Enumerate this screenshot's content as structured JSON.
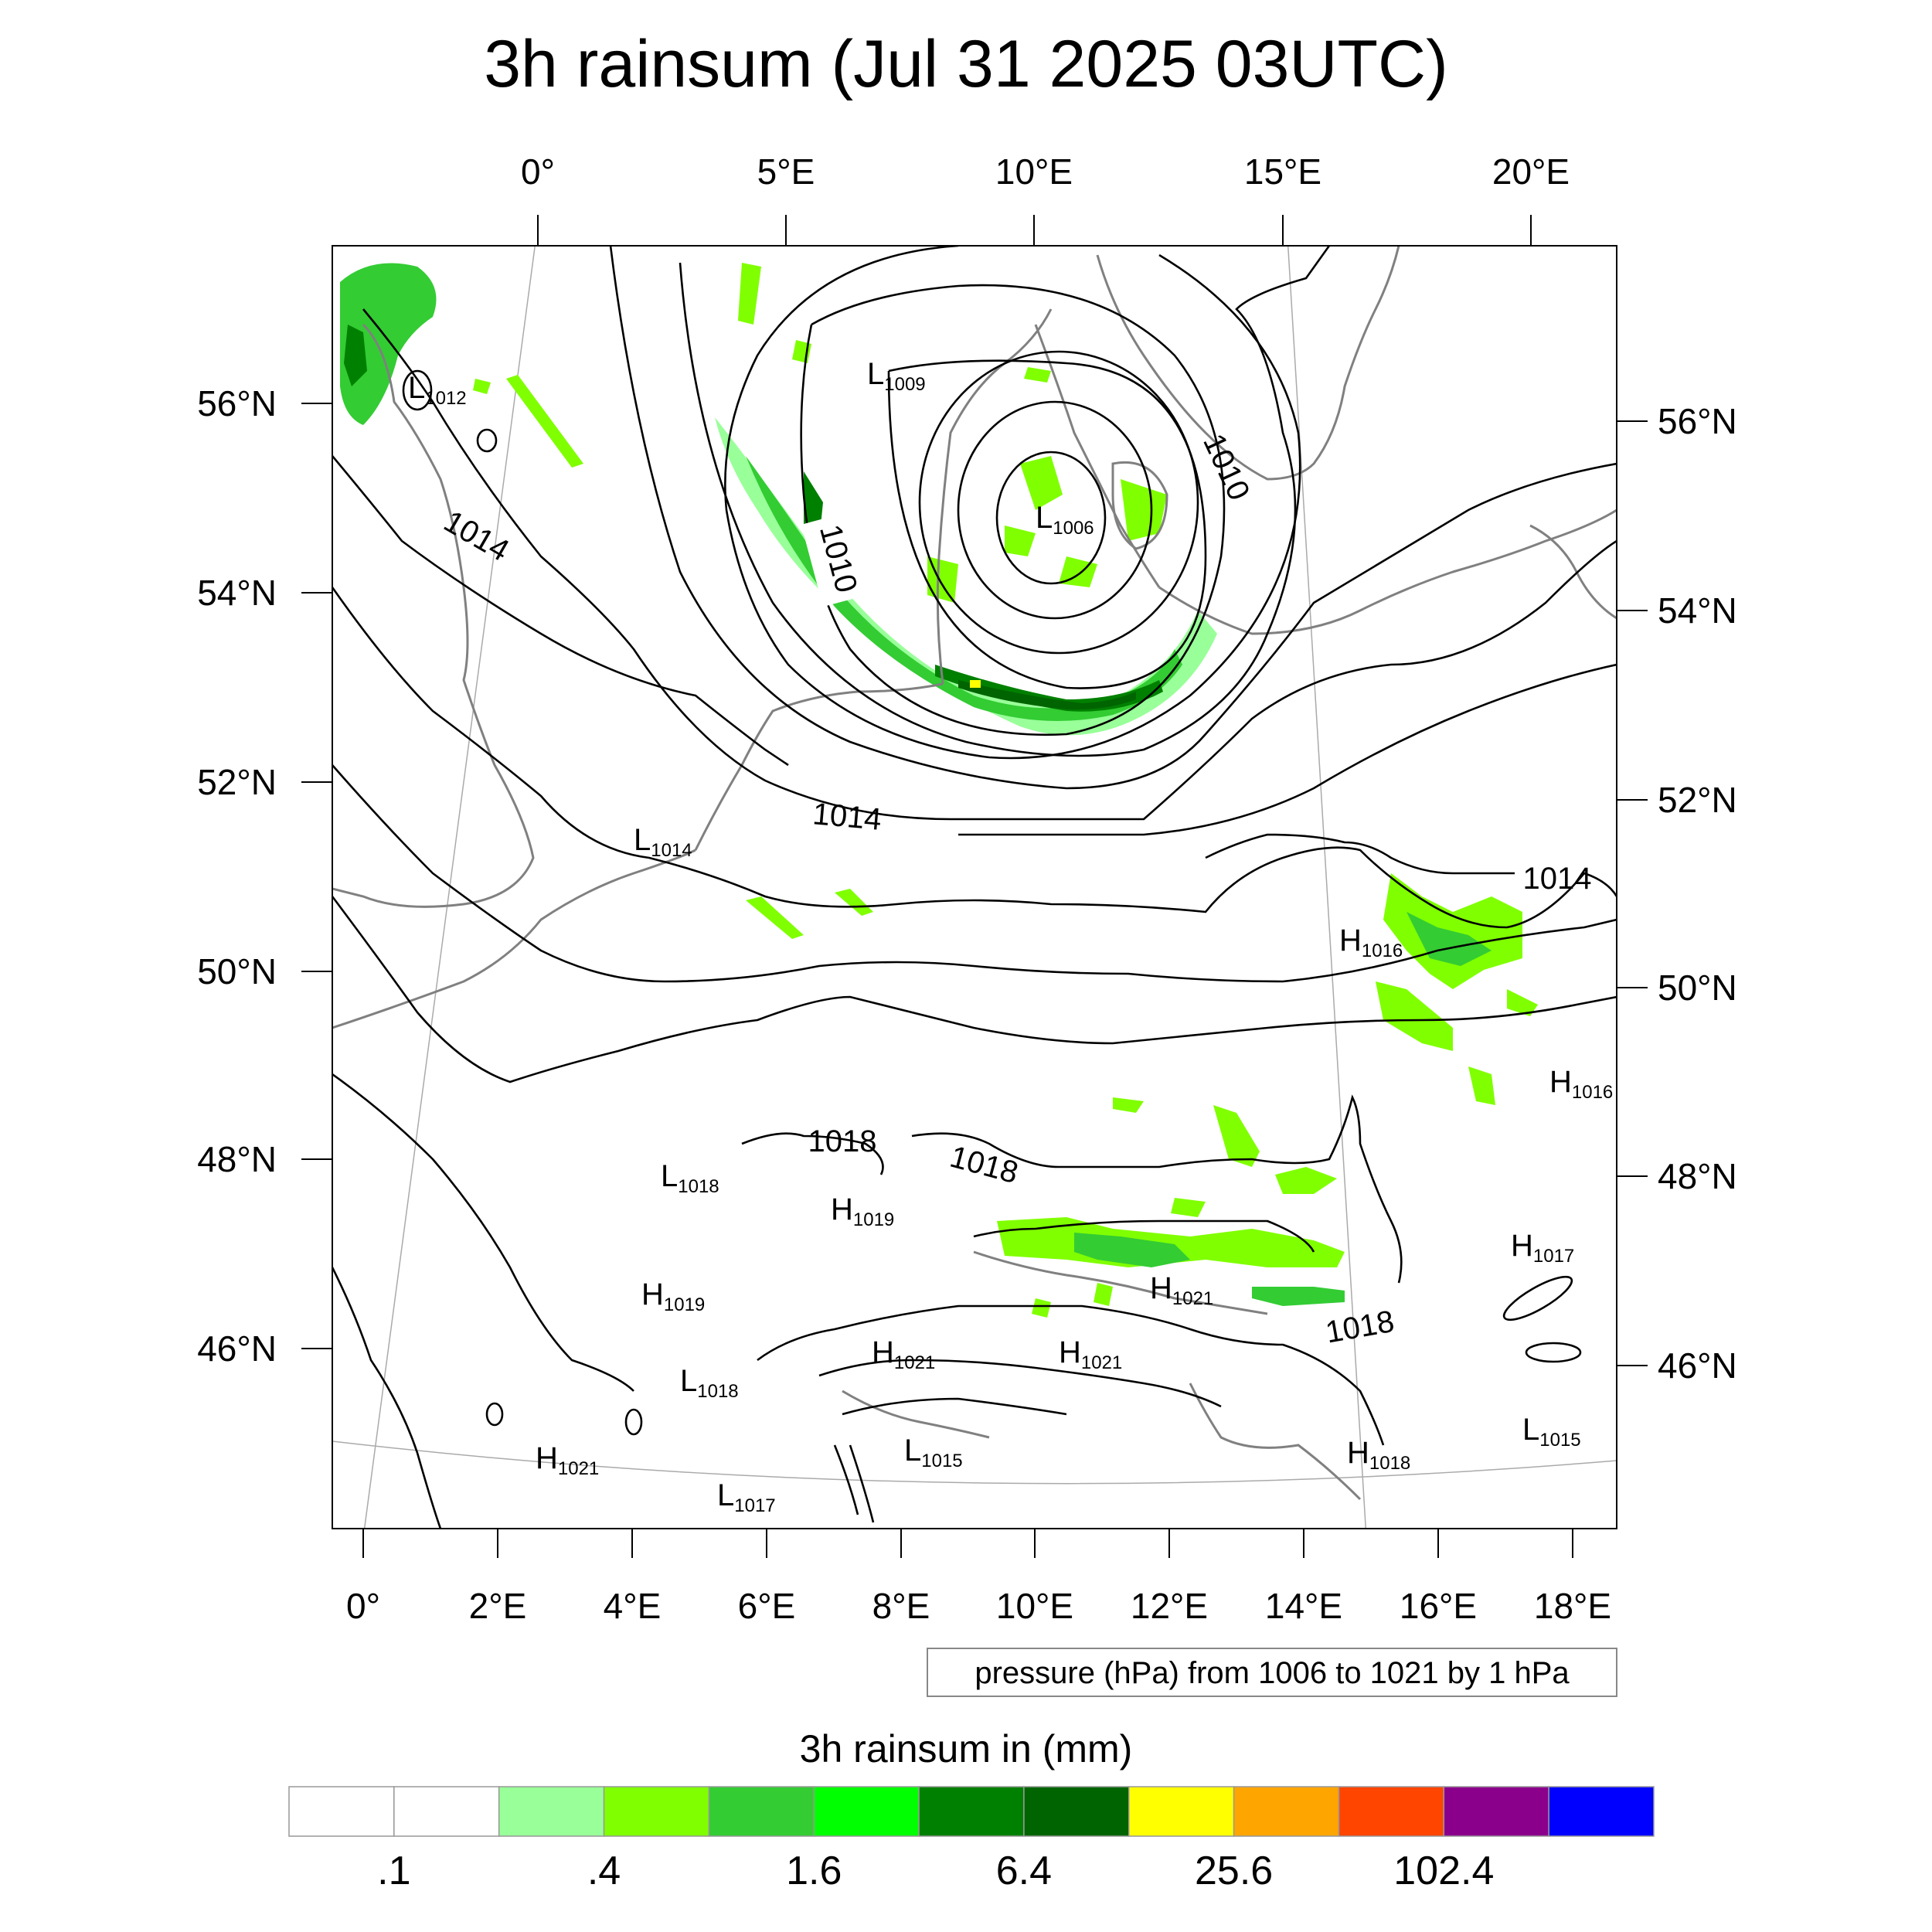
{
  "title": "3h rainsum (Jul 31 2025 03UTC)",
  "top_lon_labels": [
    "0°",
    "5°E",
    "10°E",
    "15°E",
    "20°E"
  ],
  "bottom_lon_labels": [
    "0°",
    "2°E",
    "4°E",
    "6°E",
    "8°E",
    "10°E",
    "12°E",
    "14°E",
    "16°E",
    "18°E"
  ],
  "left_lat_labels": [
    "56°N",
    "54°N",
    "52°N",
    "50°N",
    "48°N",
    "46°N"
  ],
  "right_lat_labels": [
    "56°N",
    "54°N",
    "52°N",
    "50°N",
    "48°N",
    "46°N"
  ],
  "contour_labels": [
    "1014",
    "1010",
    "1010",
    "1014",
    "1014",
    "1018",
    "1018",
    "1018"
  ],
  "pressure_centers": [
    {
      "type": "L",
      "value": "1012"
    },
    {
      "type": "L",
      "value": "1009"
    },
    {
      "type": "L",
      "value": "1006"
    },
    {
      "type": "L",
      "value": "1014"
    },
    {
      "type": "H",
      "value": "1016"
    },
    {
      "type": "H",
      "value": "1016"
    },
    {
      "type": "L",
      "value": "1018"
    },
    {
      "type": "H",
      "value": "1019"
    },
    {
      "type": "H",
      "value": "1019"
    },
    {
      "type": "H",
      "value": "1021"
    },
    {
      "type": "H",
      "value": "1017"
    },
    {
      "type": "H",
      "value": "1021"
    },
    {
      "type": "H",
      "value": "1021"
    },
    {
      "type": "L",
      "value": "1018"
    },
    {
      "type": "L",
      "value": "1015"
    },
    {
      "type": "H",
      "value": "1018"
    },
    {
      "type": "L",
      "value": "1015"
    },
    {
      "type": "H",
      "value": "1021"
    },
    {
      "type": "L",
      "value": "1017"
    }
  ],
  "info_box": "pressure (hPa) from 1006 to 1021 by 1 hPa",
  "colorbar": {
    "title": "3h rainsum in (mm)",
    "colors": [
      "#ffffff",
      "#ffffff",
      "#99ff99",
      "#80ff00",
      "#33cc33",
      "#00ff00",
      "#008000",
      "#006400",
      "#ffff00",
      "#ffa500",
      "#ff4500",
      "#8b008b",
      "#0000ff"
    ],
    "tick_labels": [
      ".1",
      ".4",
      "1.6",
      "6.4",
      "25.6",
      "102.4"
    ]
  },
  "map_colors": {
    "coast": "#808080",
    "isobar": "#000000",
    "graticule": "#aaaaaa"
  }
}
